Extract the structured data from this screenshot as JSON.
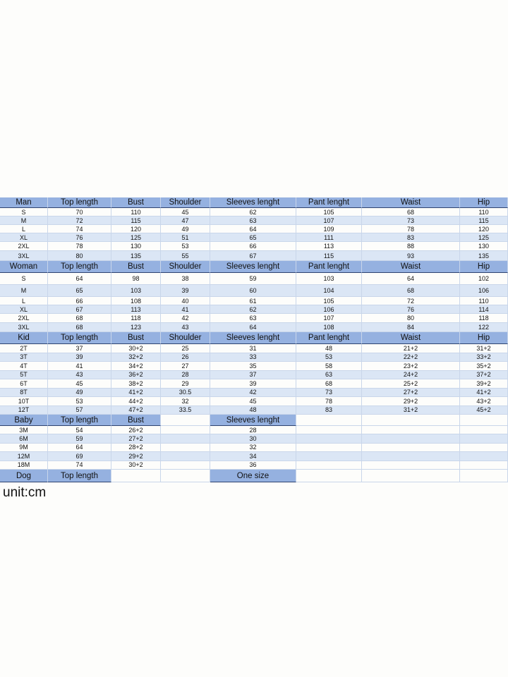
{
  "sections": [
    {
      "header": [
        "Man",
        "Top length",
        "Bust",
        "Shoulder",
        "Sleeves lenght",
        "Pant lenght",
        "Waist",
        "Hip"
      ],
      "rows": [
        [
          "S",
          70,
          110,
          45,
          62,
          105,
          68,
          110
        ],
        [
          "M",
          72,
          115,
          47,
          63,
          107,
          73,
          115
        ],
        [
          "L",
          74,
          120,
          49,
          64,
          109,
          78,
          120
        ],
        [
          "XL",
          76,
          125,
          51,
          65,
          111,
          83,
          125
        ],
        [
          "2XL",
          78,
          130,
          53,
          66,
          113,
          88,
          130
        ],
        [
          "3XL",
          80,
          135,
          55,
          67,
          115,
          93,
          135
        ]
      ]
    },
    {
      "header": [
        "Woman",
        "Top length",
        "Bust",
        "Shoulder",
        "Sleeves lenght",
        "Pant lenght",
        "Waist",
        "Hip"
      ],
      "rows": [
        [
          "S",
          64,
          98,
          38,
          59,
          103,
          64,
          102
        ],
        [
          "M",
          65,
          103,
          39,
          60,
          104,
          68,
          106
        ],
        [
          "L",
          66,
          108,
          40,
          61,
          105,
          72,
          110
        ],
        [
          "XL",
          67,
          113,
          41,
          62,
          106,
          76,
          114
        ],
        [
          "2XL",
          68,
          118,
          42,
          63,
          107,
          80,
          118
        ],
        [
          "3XL",
          68,
          123,
          43,
          64,
          108,
          84,
          122
        ]
      ]
    },
    {
      "header": [
        "Kid",
        "Top length",
        "Bust",
        "Shoulder",
        "Sleeves lenght",
        "Pant lenght",
        "Waist",
        "Hip"
      ],
      "rows": [
        [
          "2T",
          37,
          "30+2",
          25,
          31,
          48,
          "21+2",
          "31+2"
        ],
        [
          "3T",
          39,
          "32+2",
          26,
          33,
          53,
          "22+2",
          "33+2"
        ],
        [
          "4T",
          41,
          "34+2",
          27,
          35,
          58,
          "23+2",
          "35+2"
        ],
        [
          "5T",
          43,
          "36+2",
          28,
          37,
          63,
          "24+2",
          "37+2"
        ],
        [
          "6T",
          45,
          "38+2",
          29,
          39,
          68,
          "25+2",
          "39+2"
        ],
        [
          "8T",
          49,
          "41+2",
          30.5,
          42,
          73,
          "27+2",
          "41+2"
        ],
        [
          "10T",
          53,
          "44+2",
          32,
          45,
          78,
          "29+2",
          "43+2"
        ],
        [
          "12T",
          57,
          "47+2",
          33.5,
          48,
          83,
          "31+2",
          "45+2"
        ]
      ]
    },
    {
      "header": [
        "Baby",
        "Top length",
        "Bust",
        null,
        "Sleeves lenght",
        null,
        null,
        null
      ],
      "rows": [
        [
          "3M",
          54,
          "26+2",
          null,
          28,
          null,
          null,
          null
        ],
        [
          "6M",
          59,
          "27+2",
          null,
          30,
          null,
          null,
          null
        ],
        [
          "9M",
          64,
          "28+2",
          null,
          32,
          null,
          null,
          null
        ],
        [
          "12M",
          69,
          "29+2",
          null,
          34,
          null,
          null,
          null
        ],
        [
          "18M",
          74,
          "30+2",
          null,
          36,
          null,
          null,
          null
        ]
      ]
    },
    {
      "header": [
        "Dog",
        "Top length",
        null,
        null,
        "One size",
        null,
        null,
        null
      ],
      "rows": []
    }
  ],
  "unit": "unit:cm"
}
